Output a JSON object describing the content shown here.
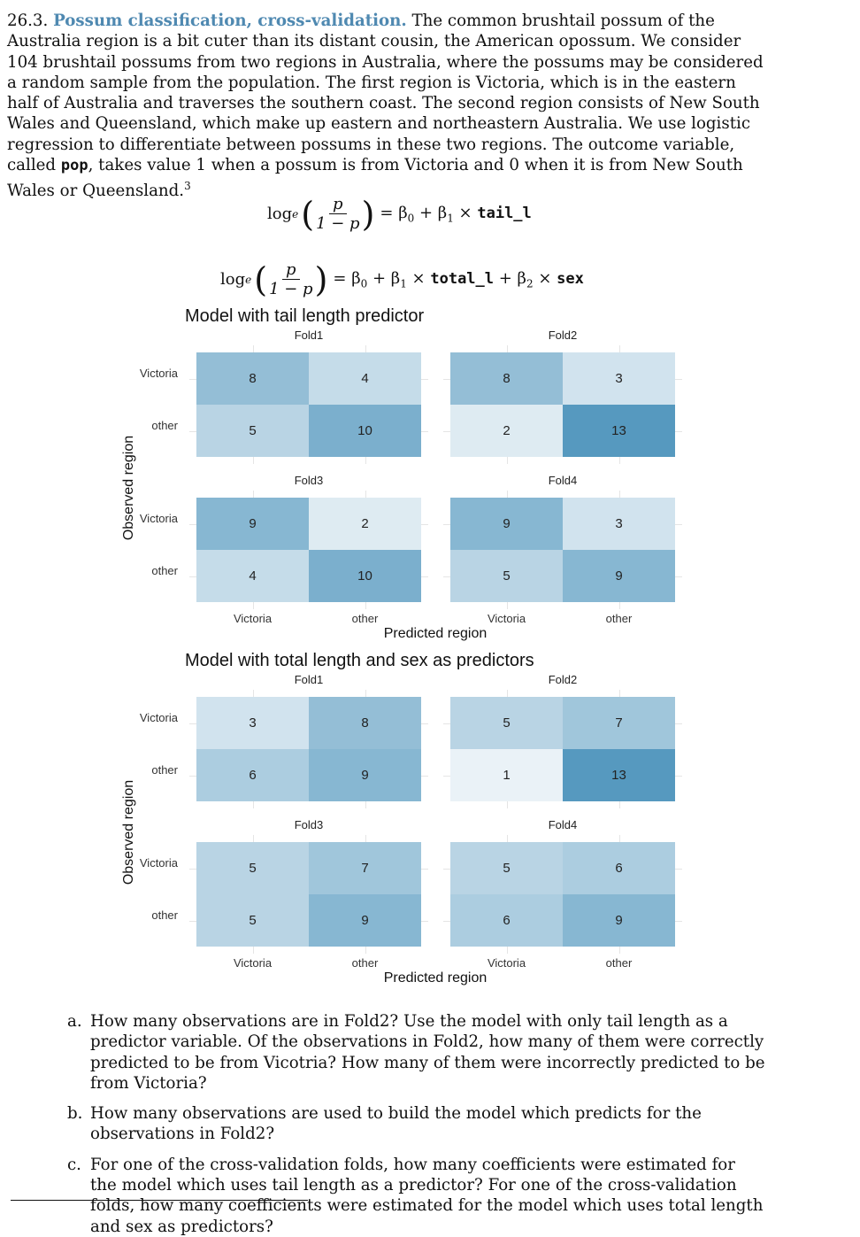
{
  "problem": {
    "number": "26.3.",
    "title": "Possum classification, cross-validation.",
    "text_parts": [
      " The common brushtail possum of the Australia region is a bit cuter than its distant cousin, the American opossum. We consider 104 brushtail possums from two regions in Australia, where the possums may be considered a random sample from the population. The first region is Victoria, which is in the eastern half of Australia and traverses the southern coast. The second region consists of New South Wales and Queensland, which make up eastern and northeastern Australia. We use logistic regression to differentiate between possums in these two regions. The outcome variable, called ",
      "pop",
      ", takes value 1 when a possum is from Victoria and 0 when it is from New South Wales or Queensland.",
      "3"
    ]
  },
  "equations": {
    "eq1": {
      "log": "log",
      "base": "e",
      "num": "p",
      "den": "1 − p",
      "rhs": "= β",
      "rhs_sub0": "0",
      "plus1": " + β",
      "sub1": "1",
      "times1": " × ",
      "var1": "tail_l"
    },
    "eq2": {
      "log": "log",
      "base": "e",
      "num": "p",
      "den": "1 − p",
      "rhs": "= β",
      "rhs_sub0": "0",
      "plus1": " + β",
      "sub1": "1",
      "times1": " × ",
      "var1": "total_l",
      "plus2": " + β",
      "sub2": "2",
      "times2": " × ",
      "var2": "sex"
    }
  },
  "chart_data": [
    {
      "type": "heatmap",
      "title": "Model with tail length predictor",
      "xlabel": "Predicted region",
      "ylabel": "Observed region",
      "x_categories": [
        "Victoria",
        "other"
      ],
      "y_categories": [
        "Victoria",
        "other"
      ],
      "facets": [
        {
          "name": "Fold1",
          "values": [
            [
              8,
              4
            ],
            [
              5,
              10
            ]
          ]
        },
        {
          "name": "Fold2",
          "values": [
            [
              8,
              3
            ],
            [
              2,
              13
            ]
          ]
        },
        {
          "name": "Fold3",
          "values": [
            [
              9,
              2
            ],
            [
              4,
              10
            ]
          ]
        },
        {
          "name": "Fold4",
          "values": [
            [
              9,
              3
            ],
            [
              5,
              9
            ]
          ]
        }
      ]
    },
    {
      "type": "heatmap",
      "title": "Model with total length and sex as predictors",
      "xlabel": "Predicted region",
      "ylabel": "Observed region",
      "x_categories": [
        "Victoria",
        "other"
      ],
      "y_categories": [
        "Victoria",
        "other"
      ],
      "facets": [
        {
          "name": "Fold1",
          "values": [
            [
              3,
              8
            ],
            [
              6,
              9
            ]
          ]
        },
        {
          "name": "Fold2",
          "values": [
            [
              5,
              7
            ],
            [
              1,
              13
            ]
          ]
        },
        {
          "name": "Fold3",
          "values": [
            [
              5,
              7
            ],
            [
              5,
              9
            ]
          ]
        },
        {
          "name": "Fold4",
          "values": [
            [
              5,
              6
            ],
            [
              6,
              9
            ]
          ]
        }
      ]
    }
  ],
  "colors": {
    "low": "#eaf2f7",
    "high": "#5699bf"
  },
  "questions": [
    {
      "label": "a.",
      "text": "How many observations are in Fold2? Use the model with only tail length as a predictor variable. Of the observations in Fold2, how many of them were correctly predicted to be from Vicotria? How many of them were incorrectly predicted to be from Victoria?"
    },
    {
      "label": "b.",
      "text": "How many observations are used to build the model which predicts for the observations in Fold2?"
    },
    {
      "label": "c.",
      "text": "For one of the cross-validation folds, how many coefficients were estimated for the model which uses tail length as a predictor? For one of the cross-validation folds, how many coefficients were estimated for the model which uses total length and sex as predictors?"
    }
  ]
}
